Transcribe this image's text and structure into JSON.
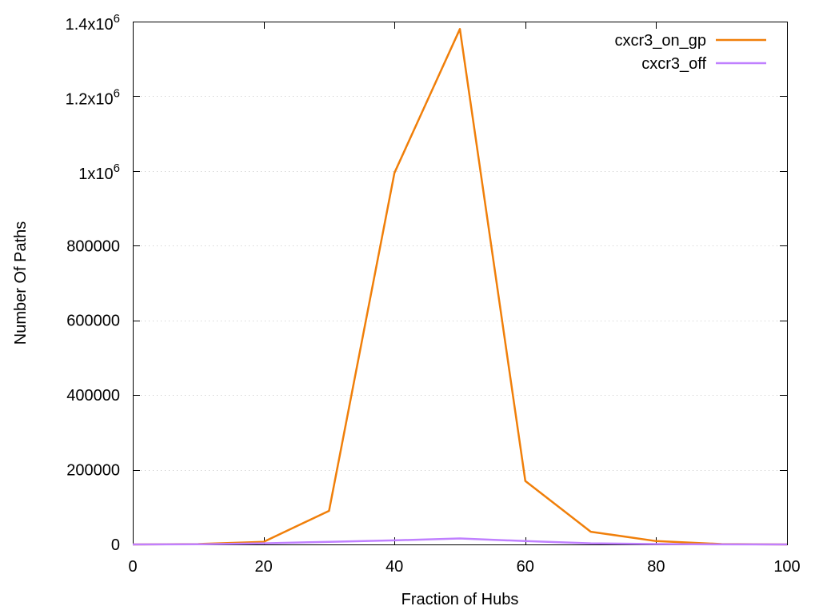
{
  "chart_data": {
    "type": "line",
    "xlabel": "Fraction of Hubs",
    "ylabel": "Number Of Paths",
    "xlim": [
      0,
      100
    ],
    "ylim": [
      0,
      1400000
    ],
    "x_ticks": [
      0,
      20,
      40,
      60,
      80,
      100
    ],
    "x_tick_labels": [
      "0",
      "20",
      "40",
      "60",
      "80",
      "100"
    ],
    "y_ticks": [
      0,
      200000,
      400000,
      600000,
      800000,
      1000000,
      1200000,
      1400000
    ],
    "y_tick_labels": [
      {
        "text": "0"
      },
      {
        "text": "200000"
      },
      {
        "text": "400000"
      },
      {
        "text": "600000"
      },
      {
        "text": "800000"
      },
      {
        "base": "1x10",
        "exp": "6"
      },
      {
        "base": "1.2x10",
        "exp": "6"
      },
      {
        "base": "1.4x10",
        "exp": "6"
      }
    ],
    "grid": true,
    "legend_position": "top-right",
    "series": [
      {
        "name": "cxcr3_on_gp",
        "color": "#f07f0a",
        "x": [
          0,
          10,
          20,
          30,
          40,
          50,
          60,
          70,
          80,
          90,
          100
        ],
        "y": [
          0,
          1000,
          7000,
          90000,
          995000,
          1380000,
          170000,
          34000,
          9000,
          1000,
          0
        ]
      },
      {
        "name": "cxcr3_off",
        "color": "#c080ff",
        "x": [
          0,
          10,
          20,
          30,
          40,
          50,
          60,
          70,
          80,
          90,
          100
        ],
        "y": [
          0,
          500,
          3000,
          7000,
          11000,
          16000,
          9000,
          3000,
          1000,
          200,
          0
        ]
      }
    ]
  }
}
